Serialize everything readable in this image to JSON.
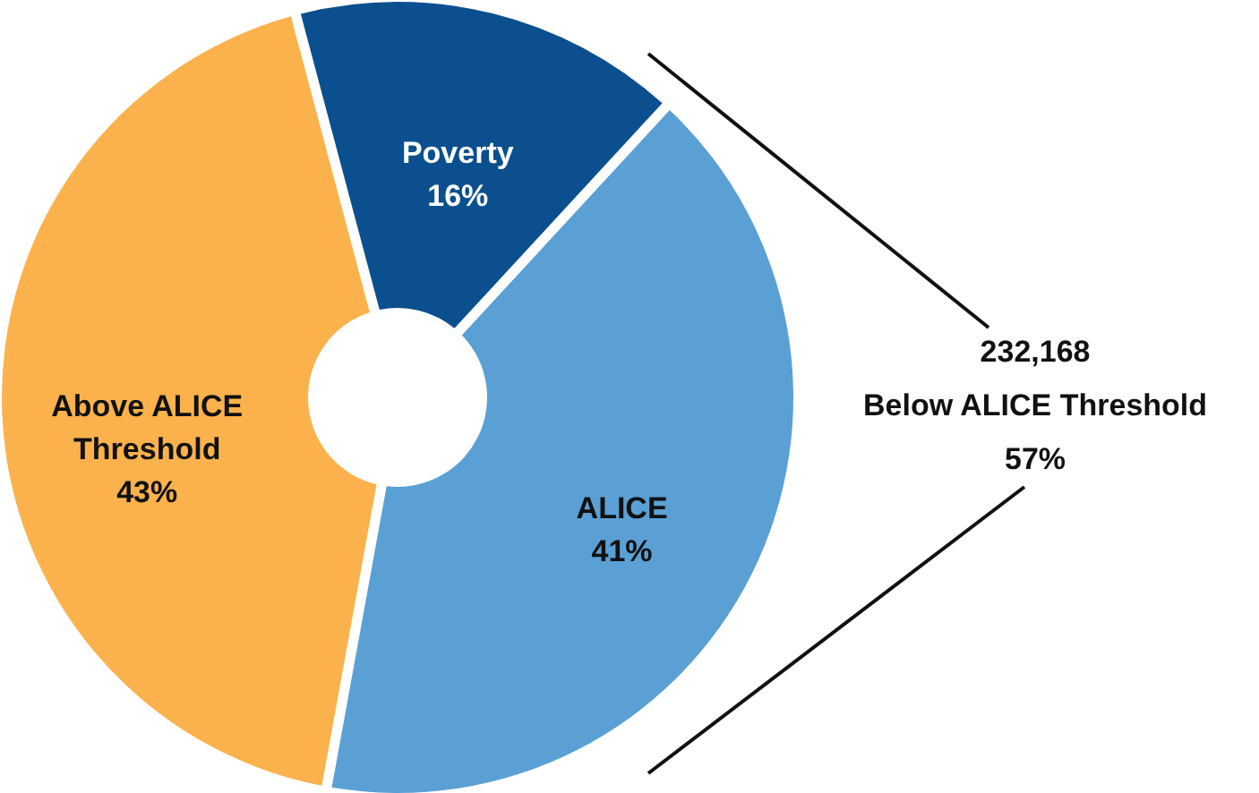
{
  "chart_data": {
    "type": "donut",
    "categories": [
      "Poverty",
      "ALICE",
      "Above ALICE Threshold"
    ],
    "values": [
      16,
      41,
      43
    ],
    "colors": [
      "#0b4f8e",
      "#5aa0d5",
      "#fbb24c"
    ],
    "value_labels": [
      "16%",
      "41%",
      "43%"
    ],
    "annotations": [
      "232,168",
      "Below ALICE Threshold",
      "57%"
    ]
  }
}
